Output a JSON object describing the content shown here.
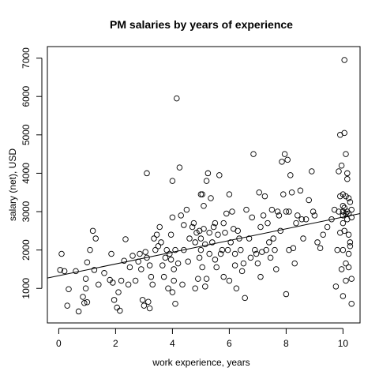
{
  "chart_data": {
    "type": "scatter",
    "title": "PM salaries by years of experience",
    "xlabel": "work experience, years",
    "ylabel": "salary (net), USD",
    "xlim": [
      -0.4,
      10.6
    ],
    "ylim": [
      100,
      7300
    ],
    "xticks": [
      0,
      2,
      4,
      6,
      8,
      10
    ],
    "yticks": [
      1000,
      2000,
      3000,
      4000,
      5000,
      6000,
      7000
    ],
    "grid": false,
    "legend": "none",
    "trendline": {
      "x": [
        -0.4,
        10.6
      ],
      "y": [
        1270,
        2950
      ]
    },
    "points": [
      [
        0.05,
        1480
      ],
      [
        0.1,
        1900
      ],
      [
        0.2,
        1450
      ],
      [
        0.3,
        550
      ],
      [
        0.35,
        980
      ],
      [
        0.6,
        1450
      ],
      [
        0.7,
        400
      ],
      [
        0.85,
        780
      ],
      [
        0.9,
        620
      ],
      [
        0.95,
        1000
      ],
      [
        0.95,
        1250
      ],
      [
        1.0,
        1680
      ],
      [
        1.0,
        640
      ],
      [
        1.1,
        2000
      ],
      [
        1.2,
        2500
      ],
      [
        1.25,
        1480
      ],
      [
        1.3,
        2300
      ],
      [
        1.4,
        1100
      ],
      [
        1.6,
        1400
      ],
      [
        1.8,
        1220
      ],
      [
        1.85,
        1900
      ],
      [
        1.9,
        1150
      ],
      [
        1.95,
        700
      ],
      [
        2.05,
        500
      ],
      [
        2.1,
        900
      ],
      [
        2.15,
        420
      ],
      [
        2.2,
        1200
      ],
      [
        2.3,
        1720
      ],
      [
        2.35,
        2280
      ],
      [
        2.45,
        1100
      ],
      [
        2.5,
        1550
      ],
      [
        2.6,
        1850
      ],
      [
        2.7,
        1200
      ],
      [
        2.8,
        1700
      ],
      [
        2.85,
        1900
      ],
      [
        2.9,
        1500
      ],
      [
        2.95,
        700
      ],
      [
        3.0,
        550
      ],
      [
        3.05,
        1950
      ],
      [
        3.1,
        4000
      ],
      [
        3.1,
        1800
      ],
      [
        3.15,
        650
      ],
      [
        3.2,
        1600
      ],
      [
        3.2,
        480
      ],
      [
        3.25,
        1300
      ],
      [
        3.3,
        1100
      ],
      [
        3.35,
        2300
      ],
      [
        3.4,
        2000
      ],
      [
        3.45,
        2400
      ],
      [
        3.5,
        2100
      ],
      [
        3.55,
        2600
      ],
      [
        3.6,
        2200
      ],
      [
        3.65,
        1600
      ],
      [
        3.7,
        1300
      ],
      [
        3.75,
        1800
      ],
      [
        3.8,
        2000
      ],
      [
        3.85,
        1000
      ],
      [
        3.9,
        1900
      ],
      [
        3.95,
        2400
      ],
      [
        3.95,
        1750
      ],
      [
        4.0,
        900
      ],
      [
        4.0,
        2850
      ],
      [
        4.0,
        3800
      ],
      [
        4.05,
        1200
      ],
      [
        4.05,
        1500
      ],
      [
        4.1,
        2000
      ],
      [
        4.1,
        600
      ],
      [
        4.15,
        5950
      ],
      [
        4.2,
        1650
      ],
      [
        4.25,
        4150
      ],
      [
        4.3,
        2900
      ],
      [
        4.35,
        1100
      ],
      [
        4.4,
        2650
      ],
      [
        4.4,
        2000
      ],
      [
        4.5,
        3050
      ],
      [
        4.55,
        1700
      ],
      [
        4.6,
        2300
      ],
      [
        4.7,
        2600
      ],
      [
        4.75,
        2700
      ],
      [
        4.8,
        1000
      ],
      [
        4.8,
        2200
      ],
      [
        4.85,
        2450
      ],
      [
        4.9,
        1250
      ],
      [
        4.95,
        1800
      ],
      [
        4.95,
        2500
      ],
      [
        5.0,
        2000
      ],
      [
        5.0,
        3450
      ],
      [
        5.0,
        2300
      ],
      [
        5.05,
        3450
      ],
      [
        5.05,
        1550
      ],
      [
        5.1,
        3150
      ],
      [
        5.1,
        2550
      ],
      [
        5.15,
        2150
      ],
      [
        5.15,
        1050
      ],
      [
        5.2,
        3800
      ],
      [
        5.2,
        1250
      ],
      [
        5.25,
        4000
      ],
      [
        5.3,
        2450
      ],
      [
        5.3,
        1900
      ],
      [
        5.35,
        3350
      ],
      [
        5.4,
        2200
      ],
      [
        5.45,
        2600
      ],
      [
        5.5,
        2700
      ],
      [
        5.5,
        1750
      ],
      [
        5.55,
        1550
      ],
      [
        5.6,
        2400
      ],
      [
        5.65,
        3950
      ],
      [
        5.7,
        1900
      ],
      [
        5.75,
        2000
      ],
      [
        5.8,
        1300
      ],
      [
        5.8,
        2700
      ],
      [
        5.85,
        2450
      ],
      [
        5.9,
        2950
      ],
      [
        5.95,
        2000
      ],
      [
        6.0,
        3450
      ],
      [
        6.0,
        1200
      ],
      [
        6.05,
        2200
      ],
      [
        6.1,
        3000
      ],
      [
        6.15,
        2550
      ],
      [
        6.2,
        1600
      ],
      [
        6.2,
        1900
      ],
      [
        6.25,
        1000
      ],
      [
        6.3,
        2500
      ],
      [
        6.35,
        2300
      ],
      [
        6.4,
        2000
      ],
      [
        6.45,
        1450
      ],
      [
        6.5,
        1650
      ],
      [
        6.55,
        750
      ],
      [
        6.6,
        3050
      ],
      [
        6.7,
        2300
      ],
      [
        6.75,
        1800
      ],
      [
        6.8,
        2850
      ],
      [
        6.85,
        4500
      ],
      [
        6.9,
        2000
      ],
      [
        6.95,
        1900
      ],
      [
        7.0,
        1650
      ],
      [
        7.05,
        3500
      ],
      [
        7.1,
        2600
      ],
      [
        7.1,
        1300
      ],
      [
        7.15,
        1950
      ],
      [
        7.2,
        2900
      ],
      [
        7.25,
        3400
      ],
      [
        7.3,
        2000
      ],
      [
        7.35,
        2700
      ],
      [
        7.4,
        2200
      ],
      [
        7.45,
        1800
      ],
      [
        7.5,
        3050
      ],
      [
        7.55,
        2300
      ],
      [
        7.6,
        2000
      ],
      [
        7.65,
        1500
      ],
      [
        7.7,
        3000
      ],
      [
        7.75,
        2900
      ],
      [
        7.8,
        2500
      ],
      [
        7.85,
        4300
      ],
      [
        7.9,
        3450
      ],
      [
        7.95,
        4500
      ],
      [
        8.0,
        3000
      ],
      [
        8.0,
        850
      ],
      [
        8.05,
        4350
      ],
      [
        8.1,
        3000
      ],
      [
        8.1,
        2000
      ],
      [
        8.15,
        3950
      ],
      [
        8.2,
        3500
      ],
      [
        8.25,
        2050
      ],
      [
        8.3,
        1650
      ],
      [
        8.35,
        2700
      ],
      [
        8.4,
        2900
      ],
      [
        8.5,
        3550
      ],
      [
        8.55,
        2800
      ],
      [
        8.6,
        2300
      ],
      [
        8.7,
        2800
      ],
      [
        8.8,
        3300
      ],
      [
        8.9,
        4050
      ],
      [
        8.95,
        3000
      ],
      [
        9.0,
        2900
      ],
      [
        9.1,
        2200
      ],
      [
        9.2,
        2050
      ],
      [
        9.3,
        2400
      ],
      [
        9.45,
        2600
      ],
      [
        9.6,
        2800
      ],
      [
        9.7,
        3050
      ],
      [
        9.75,
        1050
      ],
      [
        9.8,
        2000
      ],
      [
        9.85,
        4050
      ],
      [
        9.85,
        3000
      ],
      [
        9.9,
        2450
      ],
      [
        9.9,
        3400
      ],
      [
        9.9,
        5000
      ],
      [
        9.95,
        4200
      ],
      [
        9.95,
        1500
      ],
      [
        10.0,
        3450
      ],
      [
        10.0,
        3000
      ],
      [
        10.0,
        2900
      ],
      [
        10.0,
        3150
      ],
      [
        10.0,
        2700
      ],
      [
        10.0,
        2000
      ],
      [
        10.0,
        800
      ],
      [
        10.05,
        6950
      ],
      [
        10.05,
        3100
      ],
      [
        10.05,
        2500
      ],
      [
        10.05,
        5050
      ],
      [
        10.1,
        4500
      ],
      [
        10.1,
        3400
      ],
      [
        10.1,
        1650
      ],
      [
        10.1,
        1200
      ],
      [
        10.1,
        2950
      ],
      [
        10.15,
        3000
      ],
      [
        10.15,
        2800
      ],
      [
        10.15,
        3850
      ],
      [
        10.15,
        4000
      ],
      [
        10.2,
        3350
      ],
      [
        10.2,
        2950
      ],
      [
        10.2,
        1900
      ],
      [
        10.2,
        1550
      ],
      [
        10.2,
        2400
      ],
      [
        10.25,
        2100
      ],
      [
        10.25,
        3250
      ],
      [
        10.25,
        2200
      ],
      [
        10.3,
        2850
      ],
      [
        10.3,
        3050
      ],
      [
        10.3,
        1250
      ],
      [
        10.3,
        600
      ]
    ]
  }
}
